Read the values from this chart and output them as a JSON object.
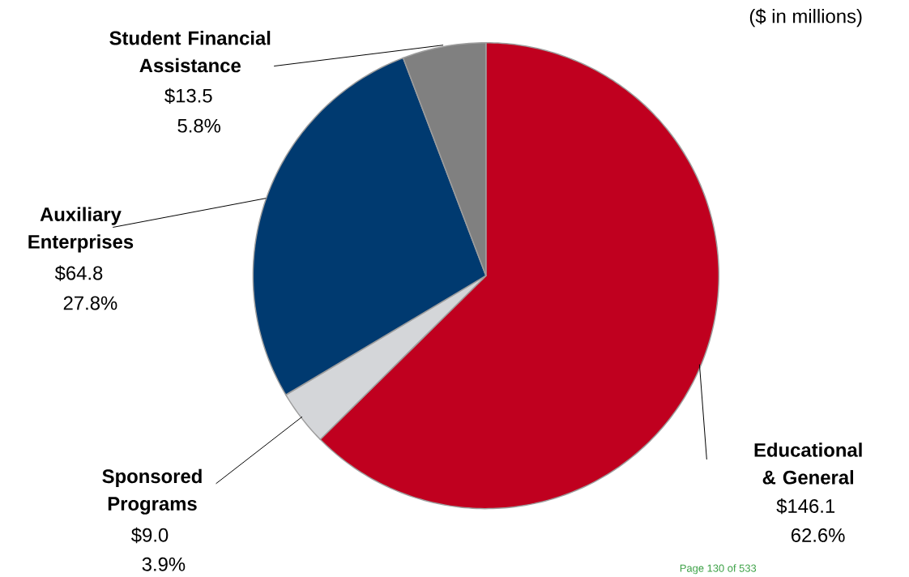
{
  "chart_data": {
    "type": "pie",
    "subtitle": "($ in millions)",
    "categories": [
      "Educational & General",
      "Sponsored Programs",
      "Auxiliary Enterprises",
      "Student Financial Assistance"
    ],
    "values": [
      146.1,
      9.0,
      64.8,
      13.5
    ],
    "colors": [
      "#c0001f",
      "#d4d6d9",
      "#003a70",
      "#808080"
    ],
    "value_labels": [
      "$146.1",
      "$9.0",
      "$64.8",
      "$13.5"
    ],
    "annotations": [
      {
        "text": "62.6%",
        "x": "Educational & General"
      },
      {
        "text": "3.9%",
        "x": "Sponsored Programs"
      },
      {
        "text": "27.8%",
        "x": "Auxiliary Enterprises"
      },
      {
        "text": "5.8%",
        "x": "Student Financial Assistance"
      },
      "Page 130 of 533"
    ]
  }
}
